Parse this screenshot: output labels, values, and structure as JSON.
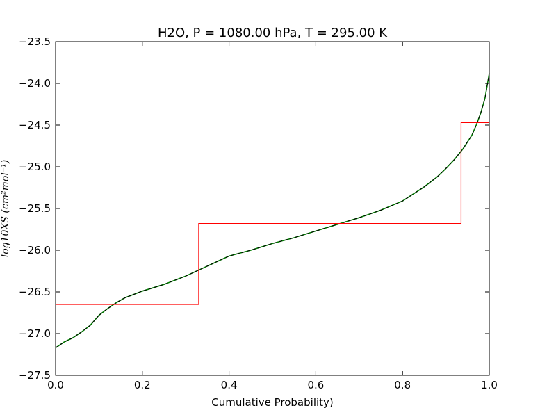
{
  "chart_data": {
    "type": "line",
    "title": "H2O, P = 1080.00 hPa, T = 295.00 K",
    "xlabel": "Cumulative Probability)",
    "ylabel": "log10XS (cm²mol⁻¹)",
    "xlim": [
      0.0,
      1.0
    ],
    "ylim": [
      -27.5,
      -23.5
    ],
    "xticks": [
      "0.0",
      "0.2",
      "0.4",
      "0.6",
      "0.8",
      "1.0"
    ],
    "yticks": [
      "−27.5",
      "−27.0",
      "−26.5",
      "−26.0",
      "−25.5",
      "−25.0",
      "−24.5",
      "−24.0",
      "−23.5"
    ],
    "grid": false,
    "colors": {
      "curve_green": "#008000",
      "curve_black": "#000000",
      "step_red": "#ff0000"
    },
    "series": [
      {
        "kind": "curve",
        "x": [
          0.0,
          0.02,
          0.04,
          0.06,
          0.08,
          0.1,
          0.12,
          0.14,
          0.16,
          0.18,
          0.2,
          0.25,
          0.3,
          0.35,
          0.4,
          0.45,
          0.5,
          0.55,
          0.6,
          0.65,
          0.7,
          0.75,
          0.8,
          0.85,
          0.88,
          0.9,
          0.92,
          0.94,
          0.96,
          0.97,
          0.98,
          0.99,
          1.0
        ],
        "values": [
          -27.17,
          -27.1,
          -27.05,
          -26.98,
          -26.9,
          -26.78,
          -26.7,
          -26.63,
          -26.57,
          -26.53,
          -26.49,
          -26.41,
          -26.31,
          -26.19,
          -26.07,
          -26.0,
          -25.92,
          -25.85,
          -25.77,
          -25.69,
          -25.61,
          -25.52,
          -25.41,
          -25.24,
          -25.12,
          -25.02,
          -24.91,
          -24.78,
          -24.62,
          -24.5,
          -24.36,
          -24.18,
          -23.88
        ]
      },
      {
        "kind": "step",
        "x": [
          0.0,
          0.33,
          0.33,
          0.935,
          0.935,
          1.0
        ],
        "values": [
          -26.65,
          -26.65,
          -25.68,
          -25.68,
          -24.47,
          -24.47
        ]
      }
    ]
  }
}
